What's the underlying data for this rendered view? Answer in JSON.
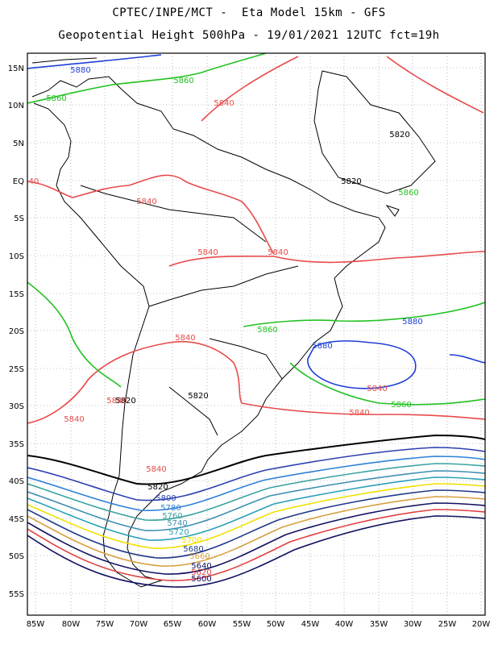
{
  "title_line1": "CPTEC/INPE/MCT -  Eta Model 15km - GFS",
  "title_line2": "Geopotential Height 500hPa - 19/01/2021 12UTC fct=19h",
  "lat_ticks": [
    "15N",
    "10N",
    "5N",
    "EQ",
    "5S",
    "10S",
    "15S",
    "20S",
    "25S",
    "30S",
    "35S",
    "40S",
    "45S",
    "50S",
    "55S"
  ],
  "lon_ticks": [
    "85W",
    "80W",
    "75W",
    "70W",
    "65W",
    "60W",
    "55W",
    "50W",
    "45W",
    "40W",
    "35W",
    "30W",
    "25W",
    "20W"
  ],
  "colors": {
    "5880": "#1f3fd6",
    "5860": "#22c222",
    "5840": "#e84a4a",
    "5820": "#000000",
    "5800": "#2a3fb0",
    "5780": "#2d7fd8",
    "5760": "#3aa3a0",
    "5740": "#3f8fb0",
    "5720": "#2aa0b8",
    "5700": "#f0e000",
    "5680": "#203a8a",
    "5660": "#d8a040",
    "5640": "#101060",
    "5620": "#e04040",
    "5600": "#101060",
    "land": "#000000",
    "grid": "#888888"
  },
  "contour_labels": [
    {
      "text": "5880",
      "level": "5880"
    },
    {
      "text": "5860",
      "level": "5860"
    },
    {
      "text": "5860",
      "level": "5860"
    },
    {
      "text": "5840",
      "level": "5840"
    },
    {
      "text": "40",
      "level": "5840"
    },
    {
      "text": "5840",
      "level": "5840"
    },
    {
      "text": "5840",
      "level": "5840"
    },
    {
      "text": "5840",
      "level": "5840"
    },
    {
      "text": "5840",
      "level": "5840"
    },
    {
      "text": "5820",
      "level": "5820"
    },
    {
      "text": "5820",
      "level": "5820"
    },
    {
      "text": "5820",
      "level": "5820"
    },
    {
      "text": "5860",
      "level": "5860"
    },
    {
      "text": "5860",
      "level": "5860"
    },
    {
      "text": "5880",
      "level": "5880"
    },
    {
      "text": "5880",
      "level": "5880"
    },
    {
      "text": "5840",
      "level": "5840"
    },
    {
      "text": "5860",
      "level": "5860"
    },
    {
      "text": "5840",
      "level": "5840"
    },
    {
      "text": "5840",
      "level": "5840"
    },
    {
      "text": "5840",
      "level": "5840"
    },
    {
      "text": "5820",
      "level": "5820"
    },
    {
      "text": "5840",
      "level": "5840"
    },
    {
      "text": "5820",
      "level": "5820"
    },
    {
      "text": "5800",
      "level": "5800"
    },
    {
      "text": "5780",
      "level": "5780"
    },
    {
      "text": "5760",
      "level": "5760"
    },
    {
      "text": "5740",
      "level": "5740"
    },
    {
      "text": "5720",
      "level": "5720"
    },
    {
      "text": "5700",
      "level": "5700"
    },
    {
      "text": "5680",
      "level": "5680"
    },
    {
      "text": "5660",
      "level": "5660"
    },
    {
      "text": "5640",
      "level": "5640"
    },
    {
      "text": "5620",
      "level": "5620"
    },
    {
      "text": "5600",
      "level": "5600"
    }
  ]
}
